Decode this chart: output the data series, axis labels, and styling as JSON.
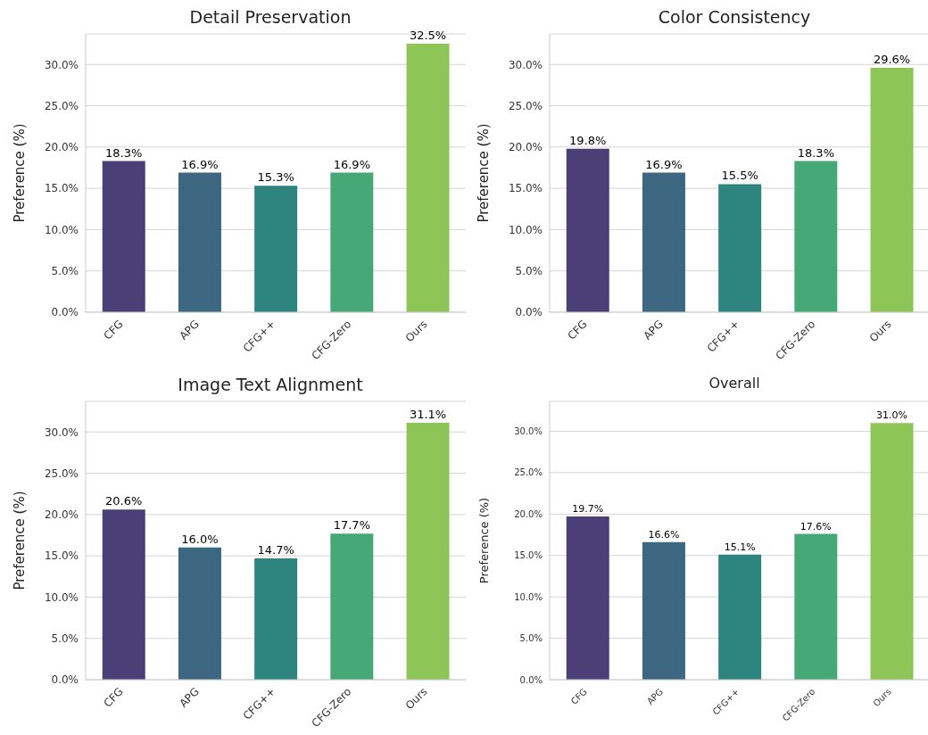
{
  "chart_data": [
    {
      "type": "bar",
      "title": "Detail Preservation",
      "ylabel": "Preference (%)",
      "categories": [
        "CFG",
        "APG",
        "CFG++",
        "CFG-Zero",
        "Ours"
      ],
      "values": [
        18.3,
        16.9,
        15.3,
        16.9,
        32.5
      ],
      "value_labels": [
        "18.3%",
        "16.9%",
        "15.3%",
        "16.9%",
        "32.5%"
      ],
      "colors": [
        "#4b3f78",
        "#3d6681",
        "#2e847e",
        "#46a876",
        "#8dc556"
      ],
      "ylim": [
        0,
        33.7
      ],
      "yticks": [
        {
          "value": 0,
          "label": "0.0%"
        },
        {
          "value": 5,
          "label": "5.0%"
        },
        {
          "value": 10,
          "label": "10.0%"
        },
        {
          "value": 15,
          "label": "15.0%"
        },
        {
          "value": 20,
          "label": "20.0%"
        },
        {
          "value": 25,
          "label": "25.0%"
        },
        {
          "value": 30,
          "label": "30.0%"
        }
      ],
      "grid": "y",
      "legend": false
    },
    {
      "type": "bar",
      "title": "Color Consistency",
      "ylabel": "Preference (%)",
      "categories": [
        "CFG",
        "APG",
        "CFG++",
        "CFG-Zero",
        "Ours"
      ],
      "values": [
        19.8,
        16.9,
        15.5,
        18.3,
        29.6
      ],
      "value_labels": [
        "19.8%",
        "16.9%",
        "15.5%",
        "18.3%",
        "29.6%"
      ],
      "colors": [
        "#4b3f78",
        "#3d6681",
        "#2e847e",
        "#46a876",
        "#8dc556"
      ],
      "ylim": [
        0,
        33.7
      ],
      "yticks": [
        {
          "value": 0,
          "label": "0.0%"
        },
        {
          "value": 5,
          "label": "5.0%"
        },
        {
          "value": 10,
          "label": "10.0%"
        },
        {
          "value": 15,
          "label": "15.0%"
        },
        {
          "value": 20,
          "label": "20.0%"
        },
        {
          "value": 25,
          "label": "25.0%"
        },
        {
          "value": 30,
          "label": "30.0%"
        }
      ],
      "grid": "y",
      "legend": false
    },
    {
      "type": "bar",
      "title": "Image Text Alignment",
      "ylabel": "Preference (%)",
      "categories": [
        "CFG",
        "APG",
        "CFG++",
        "CFG-Zero",
        "Ours"
      ],
      "values": [
        20.6,
        16.0,
        14.7,
        17.7,
        31.1
      ],
      "value_labels": [
        "20.6%",
        "16.0%",
        "14.7%",
        "17.7%",
        "31.1%"
      ],
      "colors": [
        "#4b3f78",
        "#3d6681",
        "#2e847e",
        "#46a876",
        "#8dc556"
      ],
      "ylim": [
        0,
        33.7
      ],
      "yticks": [
        {
          "value": 0,
          "label": "0.0%"
        },
        {
          "value": 5,
          "label": "5.0%"
        },
        {
          "value": 10,
          "label": "10.0%"
        },
        {
          "value": 15,
          "label": "15.0%"
        },
        {
          "value": 20,
          "label": "20.0%"
        },
        {
          "value": 25,
          "label": "25.0%"
        },
        {
          "value": 30,
          "label": "30.0%"
        }
      ],
      "grid": "y",
      "legend": false
    },
    {
      "type": "bar",
      "title": "Overall",
      "ylabel": "Preference (%)",
      "categories": [
        "CFG",
        "APG",
        "CFG++",
        "CFG-Zero",
        "Ours"
      ],
      "values": [
        19.7,
        16.6,
        15.1,
        17.6,
        31.0
      ],
      "value_labels": [
        "19.7%",
        "16.6%",
        "15.1%",
        "17.6%",
        "31.0%"
      ],
      "colors": [
        "#4b3f78",
        "#3d6681",
        "#2e847e",
        "#46a876",
        "#8dc556"
      ],
      "ylim": [
        0,
        33.6
      ],
      "yticks": [
        {
          "value": 0,
          "label": "0.0%"
        },
        {
          "value": 5,
          "label": "5.0%"
        },
        {
          "value": 10,
          "label": "10.0%"
        },
        {
          "value": 15,
          "label": "15.0%"
        },
        {
          "value": 20,
          "label": "20.0%"
        },
        {
          "value": 25,
          "label": "25.0%"
        },
        {
          "value": 30,
          "label": "30.0%"
        }
      ],
      "grid": "y",
      "legend": false
    }
  ]
}
